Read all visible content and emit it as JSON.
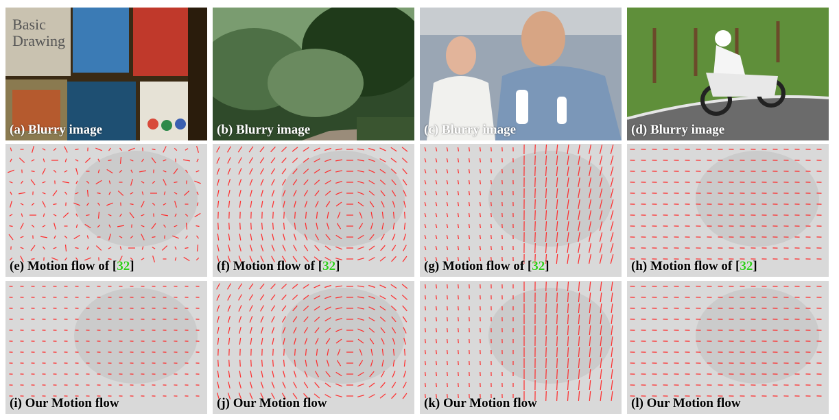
{
  "figure": {
    "row_blurry": {
      "panels": [
        {
          "label": "(a) Blurry image"
        },
        {
          "label": "(b) Blurry image"
        },
        {
          "label": "(c) Blurry image"
        },
        {
          "label": "(d) Blurry image"
        }
      ]
    },
    "row_prior": {
      "prefixes": [
        "(e)",
        "(f)",
        "(g)",
        "(h)"
      ],
      "text": "Motion flow of [",
      "citation": "32",
      "close": "]"
    },
    "row_ours": {
      "panels": [
        {
          "label": "(i) Our Motion flow"
        },
        {
          "label": "(j) Our Motion flow"
        },
        {
          "label": "(k) Our Motion flow"
        },
        {
          "label": "(l) Our Motion flow"
        }
      ]
    }
  },
  "colors": {
    "flow_vector": "#ff2a2a",
    "citation": "#2ecc1a",
    "gray_bg": "#d9d9d9"
  },
  "image_contents": {
    "a": "bookshelf with drawing books",
    "b": "blurred forest road",
    "c": "people, man holding controller",
    "d": "motorcycle racer on road"
  }
}
